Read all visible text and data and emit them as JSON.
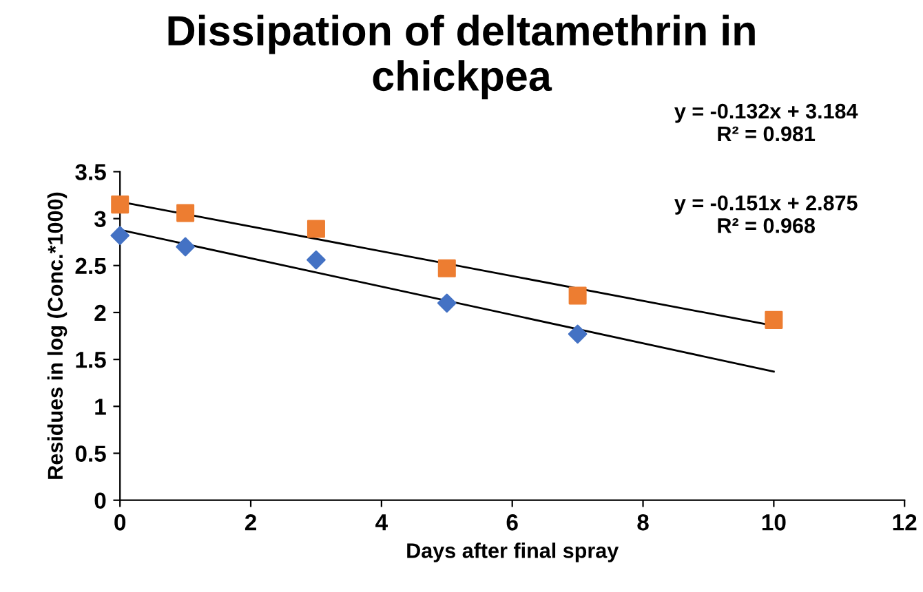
{
  "chart_data": {
    "type": "scatter",
    "title": "Dissipation of deltamethrin in chickpea",
    "xlabel": "Days after final spray",
    "ylabel": "Residues in log (Conc.*1000)",
    "xlim": [
      0,
      12
    ],
    "xticks": [
      0,
      2,
      4,
      6,
      8,
      10,
      12
    ],
    "ylim": [
      0,
      3.5
    ],
    "yticks": [
      0,
      0.5,
      1,
      1.5,
      2,
      2.5,
      3,
      3.5
    ],
    "grid": false,
    "legend": false,
    "series": [
      {
        "marker": "diamond",
        "color": "#4472c4",
        "x": [
          0,
          1,
          3,
          5,
          7
        ],
        "values": [
          2.82,
          2.7,
          2.56,
          2.1,
          1.77
        ]
      },
      {
        "marker": "square",
        "color": "#ed7d31",
        "x": [
          0,
          1,
          3,
          5,
          7,
          10
        ],
        "values": [
          3.15,
          3.06,
          2.89,
          2.47,
          2.18,
          1.92
        ]
      },
      {
        "type": "line",
        "color": "#000000",
        "x": [
          0,
          10
        ],
        "values": [
          3.18,
          1.86
        ]
      },
      {
        "type": "line",
        "color": "#000000",
        "x": [
          0,
          10
        ],
        "values": [
          2.88,
          1.37
        ]
      }
    ],
    "annotations": [
      "y = -0.132x + 3.184\nR² = 0.981",
      "y = -0.151x + 2.875\nR² = 0.968"
    ]
  }
}
